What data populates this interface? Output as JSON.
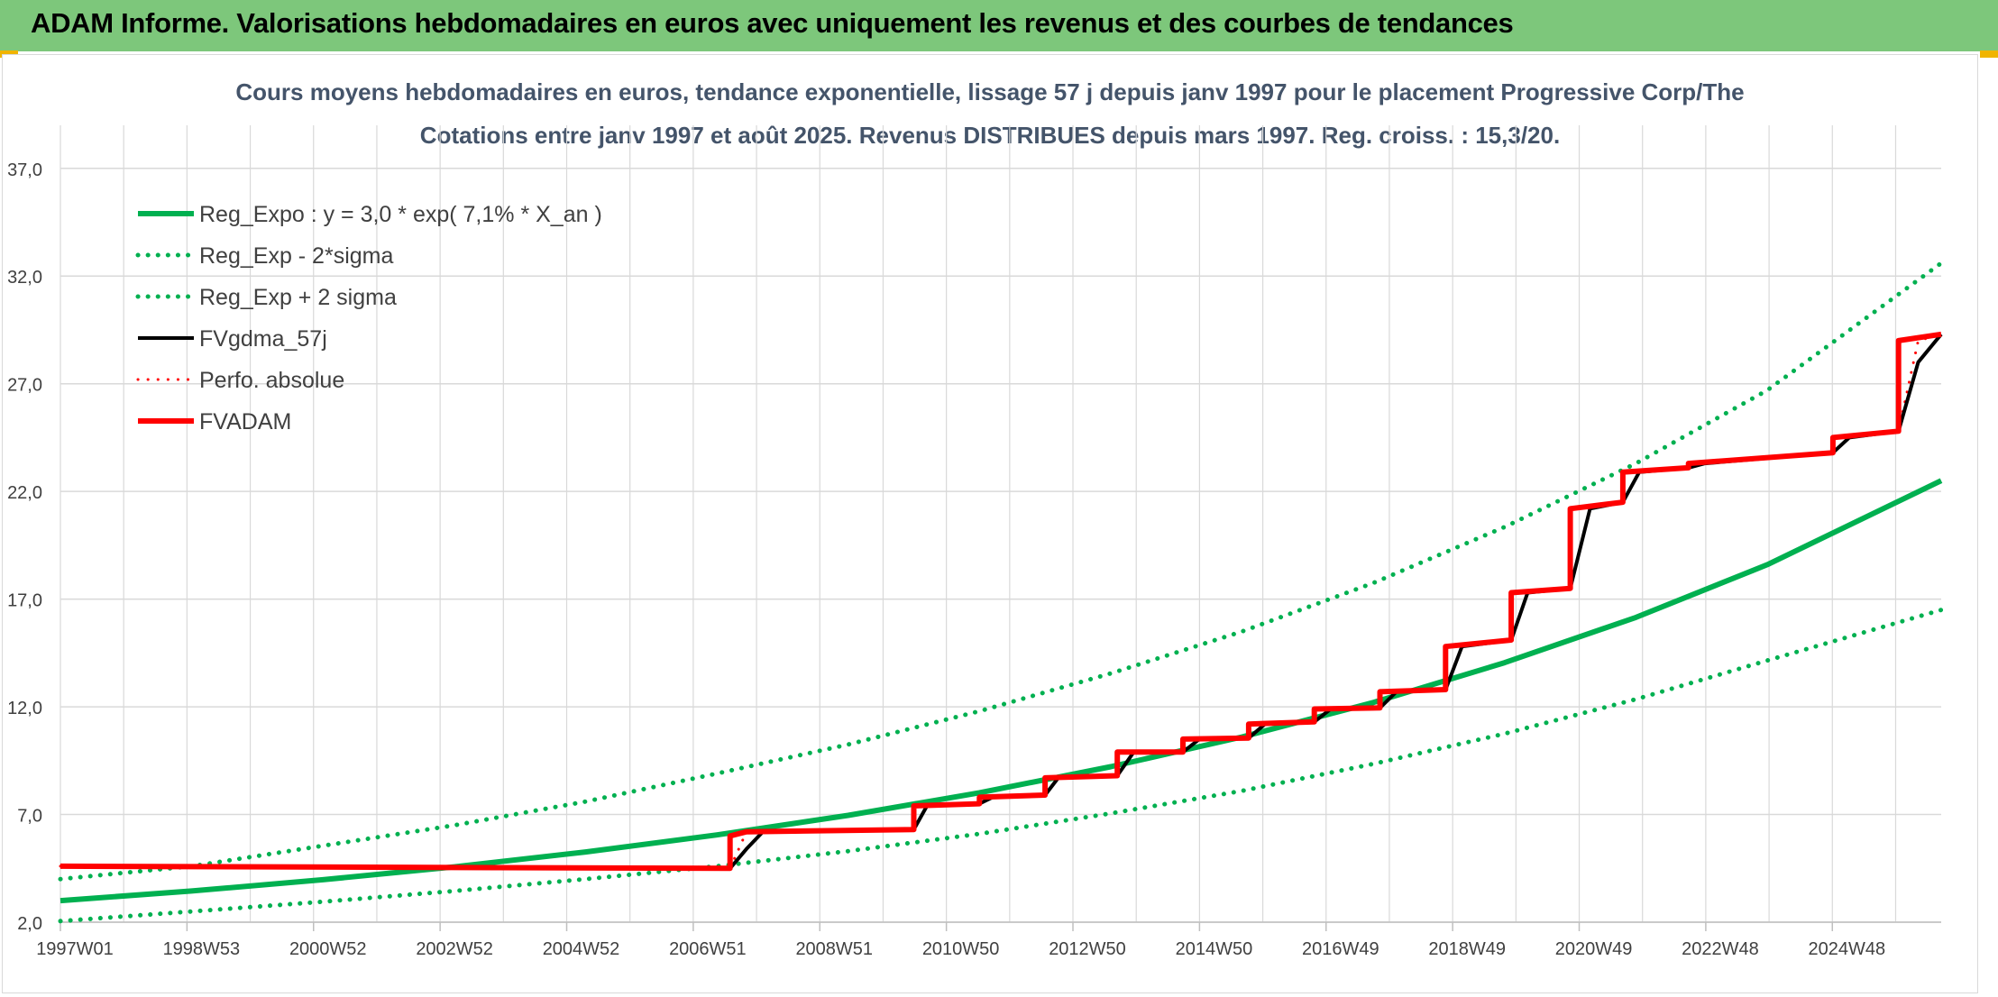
{
  "header": {
    "title": "ADAM Informe. Valorisations hebdomadaires en euros avec uniquement les revenus et des courbes de tendances"
  },
  "chart_data": {
    "type": "line",
    "title": "Cours moyens hebdomadaires en euros, tendance exponentielle, lissage 57 j depuis janv 1997 pour le placement Progressive Corp/The",
    "subtitle": "Cotations entre janv 1997 et août 2025. Revenus DISTRIBUES depuis mars 1997. Reg. croiss. : 15,3/20.",
    "x_tick_labels": [
      "1997W01",
      "1998W53",
      "2000W52",
      "2002W52",
      "2004W52",
      "2006W51",
      "2008W51",
      "2010W50",
      "2012W50",
      "2014W50",
      "2016W49",
      "2018W49",
      "2020W49",
      "2022W48",
      "2024W48"
    ],
    "x_range": [
      1997.0,
      2025.65
    ],
    "y_tick_labels": [
      "2,0",
      "7,0",
      "12,0",
      "17,0",
      "22,0",
      "27,0",
      "32,0",
      "37,0"
    ],
    "ylim": [
      2,
      39
    ],
    "grid": true,
    "legend_position": "top-left",
    "colors": {
      "green": "#00b050",
      "black": "#000000",
      "red": "#ff0000",
      "grid": "#d9d9d9",
      "axis_text": "#404040"
    },
    "series": [
      {
        "name": "Reg_Expo : y = 3,0 * exp( 7,1% *  X_an )",
        "style": "solid",
        "color": "#00b050",
        "x": [
          1997.0,
          1999.0,
          2001.0,
          2003.0,
          2005.0,
          2007.0,
          2009.0,
          2011.0,
          2013.0,
          2015.0,
          2017.0,
          2019.0,
          2021.0,
          2023.0,
          2025.65
        ],
        "y": [
          3.0,
          3.45,
          3.97,
          4.57,
          5.26,
          6.05,
          6.96,
          8.01,
          9.22,
          10.6,
          12.2,
          14.05,
          16.15,
          18.6,
          22.5
        ]
      },
      {
        "name": "Reg_Exp - 2*sigma",
        "style": "dotted",
        "color": "#00b050",
        "x": [
          1997.0,
          1999.0,
          2001.0,
          2003.0,
          2005.0,
          2007.0,
          2009.0,
          2011.0,
          2013.0,
          2015.0,
          2017.0,
          2019.0,
          2021.0,
          2023.0,
          2025.65
        ],
        "y": [
          2.05,
          2.5,
          2.95,
          3.45,
          4.0,
          4.6,
          5.3,
          6.1,
          7.05,
          8.1,
          9.35,
          10.75,
          12.35,
          14.15,
          16.5
        ]
      },
      {
        "name": "Reg_Exp + 2 sigma",
        "style": "dotted",
        "color": "#00b050",
        "x": [
          1997.0,
          1999.0,
          2001.0,
          2003.0,
          2005.0,
          2007.0,
          2009.0,
          2011.0,
          2013.0,
          2015.0,
          2017.0,
          2019.0,
          2021.0,
          2023.0,
          2025.65
        ],
        "y": [
          4.0,
          4.6,
          5.55,
          6.5,
          7.6,
          8.9,
          10.25,
          11.8,
          13.55,
          15.5,
          17.75,
          20.35,
          23.3,
          26.7,
          32.6
        ]
      },
      {
        "name": "FVgdma_57j",
        "style": "solid",
        "color": "#000000",
        "x": [
          1997.0,
          2007.2,
          2007.45,
          2007.7,
          2010.0,
          2010.2,
          2011.0,
          2011.2,
          2012.0,
          2012.2,
          2013.1,
          2013.35,
          2014.1,
          2014.35,
          2015.1,
          2015.35,
          2016.1,
          2016.35,
          2017.1,
          2017.35,
          2018.1,
          2018.35,
          2019.1,
          2019.35,
          2020.0,
          2020.3,
          2020.8,
          2021.05,
          2021.8,
          2022.05,
          2024.0,
          2024.25,
          2025.0,
          2025.3,
          2025.65
        ],
        "y": [
          4.6,
          4.5,
          5.4,
          6.2,
          6.3,
          7.4,
          7.5,
          7.8,
          7.9,
          8.7,
          8.8,
          9.9,
          9.9,
          10.5,
          10.55,
          11.2,
          11.3,
          11.9,
          11.95,
          12.7,
          12.8,
          14.8,
          15.1,
          17.3,
          17.5,
          21.2,
          21.5,
          22.9,
          23.1,
          23.3,
          23.8,
          24.5,
          24.8,
          28.0,
          29.3
        ]
      },
      {
        "name": "Perfo. absolue",
        "style": "dotted",
        "color": "#ff0000",
        "x": [
          1997.0,
          2007.2,
          2007.45,
          2010.0,
          2010.2,
          2011.0,
          2011.2,
          2012.0,
          2012.2,
          2013.1,
          2013.35,
          2014.1,
          2014.35,
          2015.1,
          2015.35,
          2016.1,
          2016.35,
          2017.1,
          2017.35,
          2018.1,
          2018.35,
          2019.1,
          2019.35,
          2020.0,
          2020.3,
          2020.8,
          2021.05,
          2021.8,
          2022.05,
          2024.0,
          2024.25,
          2025.0,
          2025.3,
          2025.65
        ],
        "y": [
          4.6,
          4.5,
          6.2,
          6.3,
          7.4,
          7.5,
          7.8,
          7.9,
          8.7,
          8.8,
          9.9,
          9.9,
          10.5,
          10.55,
          11.2,
          11.3,
          11.9,
          11.95,
          12.7,
          12.8,
          14.8,
          15.1,
          17.3,
          17.5,
          21.2,
          21.5,
          22.9,
          23.1,
          23.3,
          23.8,
          24.5,
          24.8,
          29.0,
          29.3
        ]
      },
      {
        "name": "FVADAM",
        "style": "solid",
        "color": "#ff0000",
        "x": [
          1997.0,
          2007.2,
          2007.2,
          2007.45,
          2010.0,
          2010.0,
          2011.0,
          2011.0,
          2012.0,
          2012.0,
          2013.1,
          2013.1,
          2014.1,
          2014.1,
          2015.1,
          2015.1,
          2016.1,
          2016.1,
          2017.1,
          2017.1,
          2018.1,
          2018.1,
          2019.1,
          2019.1,
          2020.0,
          2020.0,
          2020.8,
          2020.8,
          2021.8,
          2021.8,
          2024.0,
          2024.0,
          2025.0,
          2025.0,
          2025.65
        ],
        "y": [
          4.6,
          4.5,
          6.0,
          6.2,
          6.3,
          7.4,
          7.5,
          7.8,
          7.9,
          8.7,
          8.8,
          9.9,
          9.9,
          10.5,
          10.55,
          11.2,
          11.3,
          11.9,
          11.95,
          12.7,
          12.8,
          14.8,
          15.1,
          17.3,
          17.5,
          21.2,
          21.5,
          22.9,
          23.1,
          23.3,
          23.8,
          24.5,
          24.8,
          29.0,
          29.3
        ]
      }
    ]
  }
}
